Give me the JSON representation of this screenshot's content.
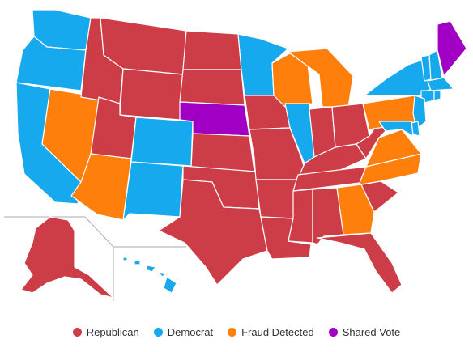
{
  "colors": {
    "republican": "#cc3d47",
    "democrat": "#16a9ee",
    "fraud": "#ff7f0c",
    "shared": "#a100c4"
  },
  "legend": [
    {
      "key": "republican",
      "label": "Republican"
    },
    {
      "key": "democrat",
      "label": "Democrat"
    },
    {
      "key": "fraud",
      "label": "Fraud Detected"
    },
    {
      "key": "shared",
      "label": "Shared Vote"
    }
  ],
  "states": {
    "WA": "democrat",
    "OR": "democrat",
    "CA": "democrat",
    "NV": "fraud",
    "ID": "republican",
    "MT": "republican",
    "WY": "republican",
    "UT": "republican",
    "AZ": "fraud",
    "CO": "democrat",
    "NM": "democrat",
    "ND": "republican",
    "SD": "republican",
    "NE": "shared",
    "KS": "republican",
    "OK": "republican",
    "TX": "republican",
    "MN": "democrat",
    "IA": "republican",
    "MO": "republican",
    "AR": "republican",
    "LA": "republican",
    "WI": "fraud",
    "IL": "democrat",
    "MI": "fraud",
    "IN": "republican",
    "OH": "republican",
    "KY": "republican",
    "TN": "republican",
    "MS": "republican",
    "AL": "republican",
    "GA": "fraud",
    "FL": "republican",
    "SC": "republican",
    "NC": "fraud",
    "VA": "fraud",
    "WV": "republican",
    "PA": "fraud",
    "NY": "democrat",
    "VT": "democrat",
    "NH": "democrat",
    "ME": "shared",
    "MA": "democrat",
    "CT": "democrat",
    "RI": "democrat",
    "NJ": "democrat",
    "DE": "democrat",
    "MD": "democrat",
    "AK": "republican",
    "HI": "democrat"
  }
}
